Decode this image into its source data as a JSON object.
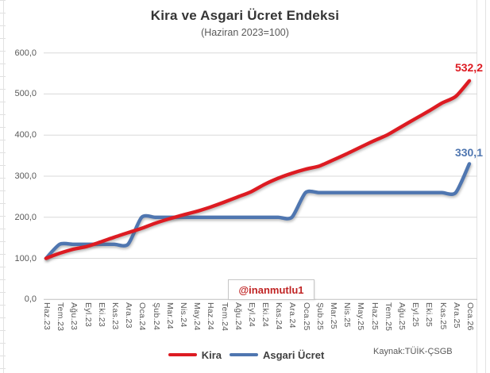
{
  "title": "Kira ve Asgari Ücret Endeksi",
  "subtitle": "(Haziran 2023=100)",
  "watermark": "@inanmutlu1",
  "source": "Kaynak:TÜİK-ÇSGB",
  "end_labels": {
    "kira": "532,2",
    "asgari": "330,1"
  },
  "legend": [
    {
      "label": "Kira",
      "color": "#dd1b22"
    },
    {
      "label": "Asgari Ücret",
      "color": "#4f76b0"
    }
  ],
  "colors": {
    "kira_line": "#dd1b22",
    "asgari_line": "#4f76b0",
    "gridline": "#d9d9d9",
    "axis_line": "#bfbfbf",
    "tick_text": "#595959",
    "title_text": "#353535",
    "watermark_text": "#c02424"
  },
  "chart_data": {
    "type": "line",
    "title": "Kira ve Asgari Ücret Endeksi",
    "subtitle": "(Haziran 2023=100)",
    "xlabel": "",
    "ylabel": "",
    "ylim": [
      0,
      600
    ],
    "ytick_step": 100,
    "ytick_labels": [
      "0,0",
      "100,0",
      "200,0",
      "300,0",
      "400,0",
      "500,0",
      "600,0"
    ],
    "grid": true,
    "legend_position": "bottom",
    "line_style": "smooth",
    "categories": [
      "Haz.23",
      "Tem.23",
      "Ağu.23",
      "Eyl.23",
      "Eki.23",
      "Kas.23",
      "Ara.23",
      "Oca.24",
      "Şub.24",
      "Mar.24",
      "Nis.24",
      "May.24",
      "Haz.24",
      "Tem.24",
      "Ağu.24",
      "Eyl.24",
      "Eki.24",
      "Kas.24",
      "Ara.24",
      "Oca.25",
      "Şub.25",
      "Mar.25",
      "Nis.25",
      "May.25",
      "Haz.25",
      "Tem.25",
      "Ağu.25",
      "Eyl.25",
      "Eki.25",
      "Kas.25",
      "Ara.25",
      "Oca.26"
    ],
    "series": [
      {
        "name": "Kira",
        "color": "#dd1b22",
        "end_label": "532,2",
        "values": [
          100.0,
          112.4,
          122.3,
          129.0,
          140.0,
          151.5,
          162.5,
          173.0,
          185.5,
          196.0,
          205.3,
          214.0,
          224.3,
          236.2,
          249.0,
          262.0,
          280.0,
          295.0,
          307.0,
          317.0,
          324.5,
          339.0,
          354.0,
          370.0,
          386.0,
          400.5,
          420.0,
          439.0,
          458.0,
          478.0,
          494.0,
          532.2
        ]
      },
      {
        "name": "Asgari Ücret",
        "color": "#4f76b0",
        "end_label": "330,1",
        "values": [
          100.0,
          134.2,
          134.2,
          134.2,
          134.2,
          134.2,
          134.2,
          199.9,
          199.9,
          199.9,
          199.9,
          199.9,
          199.9,
          199.9,
          199.9,
          199.9,
          199.9,
          199.9,
          199.9,
          259.9,
          259.9,
          259.9,
          259.9,
          259.9,
          259.9,
          259.9,
          259.9,
          259.9,
          259.9,
          259.9,
          259.9,
          330.1
        ]
      }
    ]
  }
}
